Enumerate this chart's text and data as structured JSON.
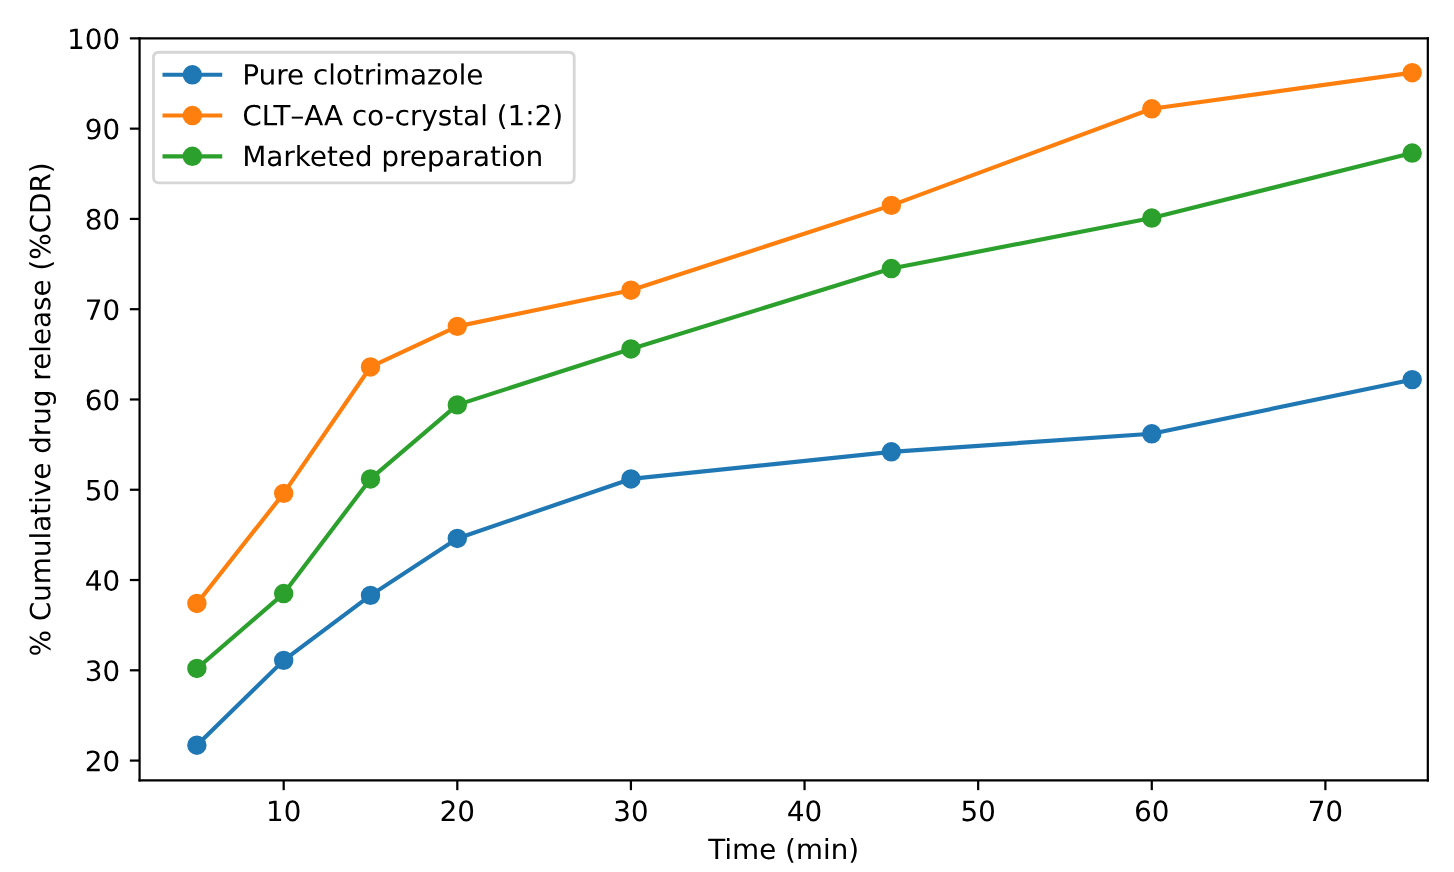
{
  "chart_data": {
    "type": "line",
    "xlabel": "Time (min)",
    "ylabel": "% Cumulative drug release (%CDR)",
    "x": [
      5,
      10,
      15,
      20,
      30,
      45,
      60,
      75
    ],
    "series": [
      {
        "name": "Pure clotrimazole",
        "color": "#1f77b4",
        "values": [
          21.7,
          31.1,
          38.3,
          44.6,
          51.2,
          54.2,
          56.2,
          62.2
        ]
      },
      {
        "name": "CLT–AA co-crystal (1:2)",
        "color": "#ff7f0e",
        "values": [
          37.4,
          49.6,
          63.6,
          68.1,
          72.1,
          81.5,
          92.2,
          96.2
        ]
      },
      {
        "name": "Marketed preparation",
        "color": "#2ca02c",
        "values": [
          30.2,
          38.5,
          51.2,
          59.4,
          65.6,
          74.5,
          80.1,
          87.3
        ]
      }
    ],
    "xlim": [
      1.7,
      75.9
    ],
    "xticks": [
      10,
      20,
      30,
      40,
      50,
      60,
      70
    ],
    "ylim": [
      17.8,
      100
    ],
    "yticks": [
      20,
      30,
      40,
      50,
      60,
      70,
      80,
      90,
      100
    ],
    "marker": "circle",
    "line_style": "solid",
    "legend": "top left",
    "grid": false
  }
}
